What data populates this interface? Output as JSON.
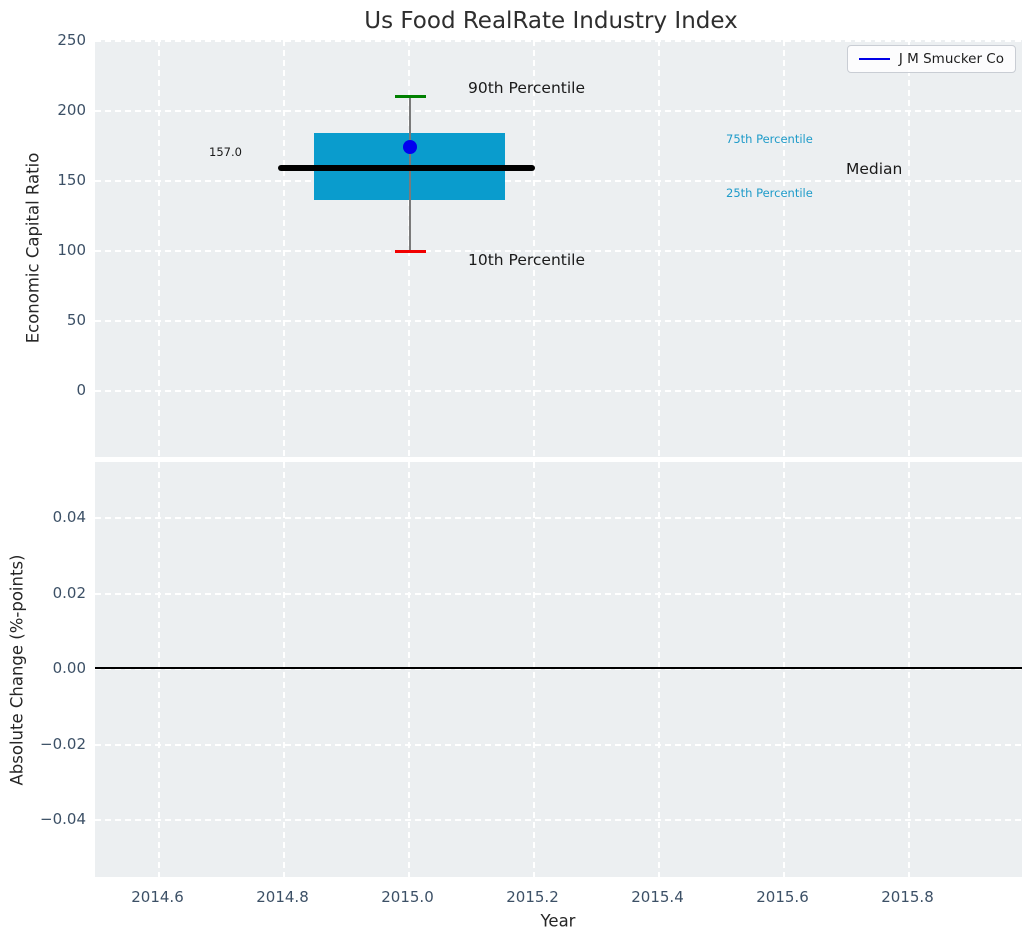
{
  "title": "Us Food RealRate Industry Index",
  "ui": {
    "legend_label": "J M Smucker Co",
    "top_ylabel": "Economic Capital Ratio",
    "bottom_ylabel": "Absolute Change (%-points)",
    "xlabel": "Year",
    "top_yticks": [
      "250",
      "200",
      "150",
      "100",
      "50",
      "0"
    ],
    "bottom_yticks": [
      "0.04",
      "0.02",
      "0.00",
      "−0.02",
      "−0.04"
    ],
    "xticks": [
      "2014.6",
      "2014.8",
      "2015.0",
      "2015.2",
      "2015.4",
      "2015.6",
      "2015.8"
    ],
    "annotations": {
      "p90": "90th Percentile",
      "p10": "10th Percentile",
      "p75": "75th Percentile",
      "p25": "25th Percentile",
      "median": "Median",
      "median_value": "157.0"
    }
  },
  "colors": {
    "box_fill": "#0a9ccd",
    "median_line": "#000000",
    "whisker": "#7a7a7a",
    "p90_cap": "#008000",
    "p10_cap": "#f10000",
    "company_point": "#0101f0",
    "legend_line": "#0000e6",
    "percentile_text": "#1e9bc9",
    "axes_background": "#eceff1",
    "tick_label": "#3c5066"
  },
  "chart_data": [
    {
      "type": "box",
      "panel": "top",
      "title": "Us Food RealRate Industry Index",
      "ylabel": "Economic Capital Ratio",
      "xlabel": "Year",
      "xlim": [
        2014.5,
        2015.98
      ],
      "ylim": [
        -48,
        250
      ],
      "yticks": [
        0,
        50,
        100,
        150,
        200,
        250
      ],
      "xticks": [
        2014.6,
        2014.8,
        2015.0,
        2015.2,
        2015.4,
        2015.6,
        2015.8
      ],
      "grid": true,
      "legend_position": "upper right",
      "legend_entries": [
        "J M Smucker Co"
      ],
      "boxes": [
        {
          "x": 2015.0,
          "p10": 99,
          "p25": 135,
          "median": 157.0,
          "p75": 183,
          "p90": 209,
          "box_width_years": 0.3,
          "median_line_width_years": 0.4
        }
      ],
      "points": [
        {
          "name": "J M Smucker Co",
          "x": 2015.0,
          "y": 172
        }
      ],
      "annotations": [
        "90th Percentile",
        "10th Percentile",
        "75th Percentile",
        "25th Percentile",
        "Median",
        "157.0"
      ]
    },
    {
      "type": "line",
      "panel": "bottom",
      "ylabel": "Absolute Change (%-points)",
      "xlabel": "Year",
      "xlim": [
        2014.5,
        2015.98
      ],
      "ylim": [
        -0.056,
        0.055
      ],
      "yticks": [
        -0.04,
        -0.02,
        0.0,
        0.02,
        0.04
      ],
      "xticks": [
        2014.6,
        2014.8,
        2015.0,
        2015.2,
        2015.4,
        2015.6,
        2015.8
      ],
      "grid": true,
      "series": [],
      "reference_line_y": 0.0
    }
  ]
}
